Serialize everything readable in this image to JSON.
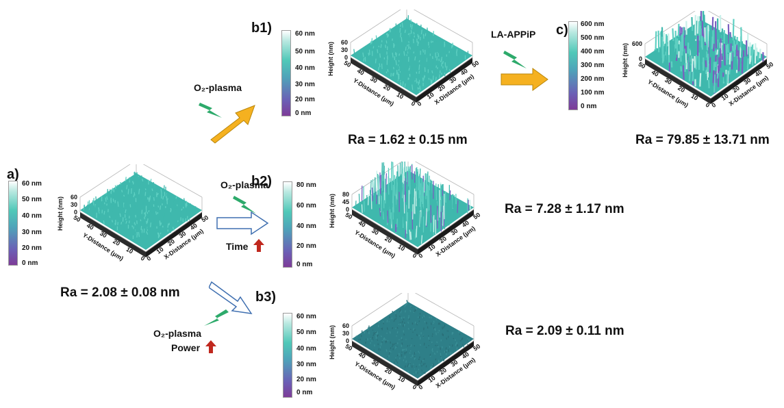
{
  "panels": {
    "a": {
      "label": "a)",
      "ra": "Ra = 2.08 ± 0.08 nm",
      "colorbar": [
        "60 nm",
        "50 nm",
        "40 nm",
        "30 nm",
        "20 nm",
        "0 nm"
      ],
      "z_ticks": [
        "60",
        "30",
        "0"
      ]
    },
    "b1": {
      "label": "b1)",
      "ra": "Ra = 1.62 ± 0.15 nm",
      "colorbar": [
        "60 nm",
        "50 nm",
        "40 nm",
        "30 nm",
        "20 nm",
        "0 nm"
      ],
      "z_ticks": [
        "60",
        "30",
        "0"
      ]
    },
    "b2": {
      "label": "b2)",
      "ra": "Ra = 7.28 ± 1.17 nm",
      "colorbar": [
        "80 nm",
        "60 nm",
        "40 nm",
        "20 nm",
        "0 nm"
      ],
      "z_ticks": [
        "80",
        "45",
        "0"
      ]
    },
    "b3": {
      "label": "b3)",
      "ra": "Ra = 2.09 ± 0.11 nm",
      "colorbar": [
        "60 nm",
        "50 nm",
        "40 nm",
        "30 nm",
        "20 nm",
        "0 nm"
      ],
      "z_ticks": [
        "60",
        "30",
        "0"
      ]
    },
    "c": {
      "label": "c)",
      "ra": "Ra = 79.85 ± 13.71 nm",
      "colorbar": [
        "600 nm",
        "500 nm",
        "400 nm",
        "300 nm",
        "200 nm",
        "100 nm",
        "0 nm"
      ],
      "z_ticks": [
        "600",
        "0"
      ]
    }
  },
  "axes": {
    "height_label": "Height (nm)",
    "x_label": "X-Distance (μm)",
    "y_label": "Y-Distance (μm)",
    "xy_ticks": [
      "0",
      "10",
      "20",
      "30",
      "40",
      "50"
    ]
  },
  "processes": {
    "o2_plasma_label": "O₂-plasma",
    "la_appip_label": "LA-APPiP",
    "time_label": "Time",
    "power_label": "Power"
  },
  "colors": {
    "surface_teal": "#3fb8ad",
    "surface_dark_teal": "#2e7f88",
    "surface_purple": "#7a5fc0",
    "base_dark": "#2b2b2b",
    "arrow_orange": "#f5b120",
    "arrow_outline_blue": "#3f6fb0",
    "lightning_green": "#2daa6b",
    "up_arrow_red": "#c0281e"
  }
}
